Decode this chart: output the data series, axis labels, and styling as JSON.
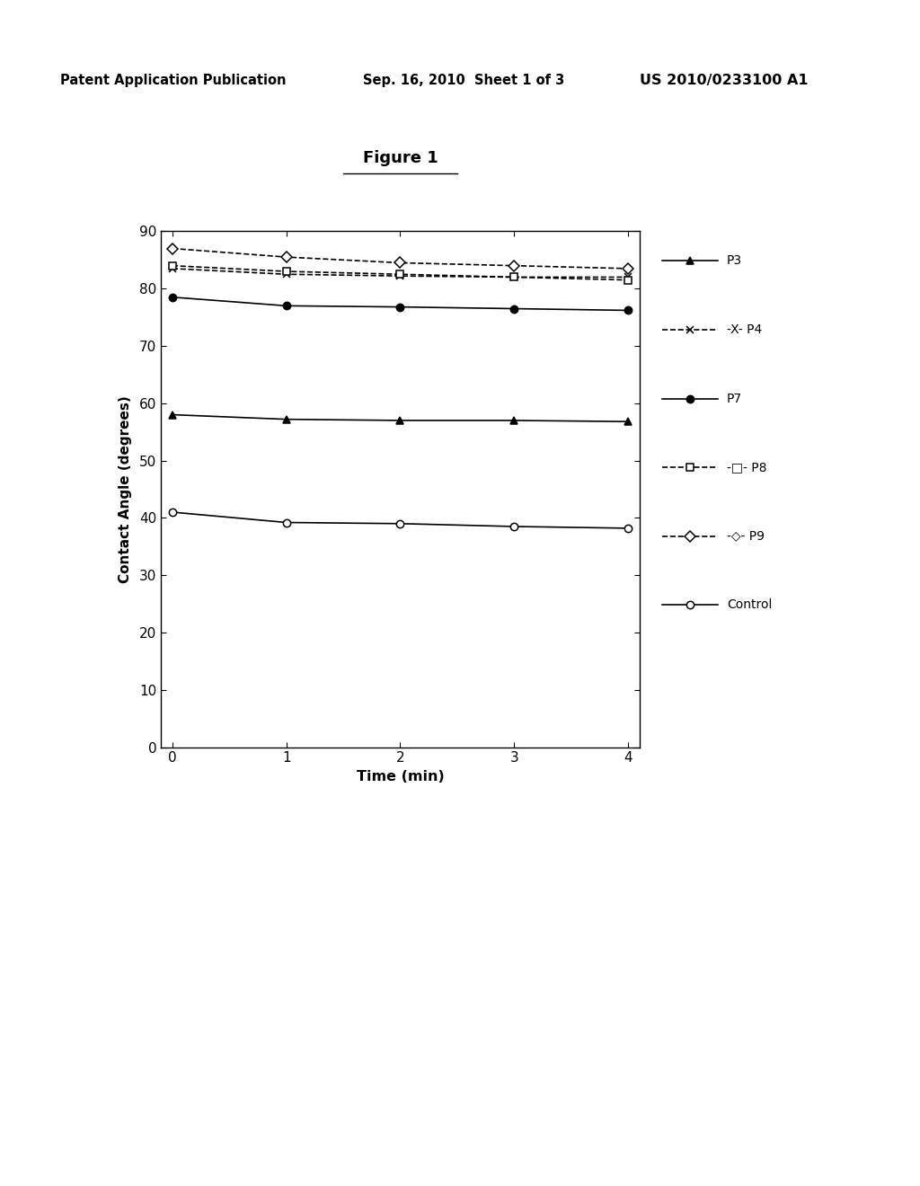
{
  "title": "Figure 1",
  "xlabel": "Time (min)",
  "ylabel": "Contact Angle (degrees)",
  "x": [
    0,
    1,
    2,
    3,
    4
  ],
  "series": [
    {
      "name": "P3",
      "y": [
        58.0,
        57.2,
        57.0,
        57.0,
        56.8
      ],
      "marker": "^",
      "linestyle": "-",
      "fill": true
    },
    {
      "name": "P4",
      "y": [
        83.5,
        82.5,
        82.2,
        82.0,
        82.0
      ],
      "marker": "x",
      "linestyle": "--",
      "fill": true
    },
    {
      "name": "P7",
      "y": [
        78.5,
        77.0,
        76.8,
        76.5,
        76.2
      ],
      "marker": "o",
      "linestyle": "-",
      "fill": true
    },
    {
      "name": "P8",
      "y": [
        84.0,
        83.0,
        82.5,
        82.0,
        81.5
      ],
      "marker": "s",
      "linestyle": "--",
      "fill": false
    },
    {
      "name": "P9",
      "y": [
        87.0,
        85.5,
        84.5,
        84.0,
        83.5
      ],
      "marker": "D",
      "linestyle": "--",
      "fill": false
    },
    {
      "name": "Control",
      "y": [
        41.0,
        39.2,
        39.0,
        38.5,
        38.2
      ],
      "marker": "o",
      "linestyle": "-",
      "fill": false
    }
  ],
  "legend_items": [
    {
      "label": "P3",
      "marker": "^",
      "ls": "-",
      "fill": true
    },
    {
      "label": "-X- P4",
      "marker": "x",
      "ls": "--",
      "fill": true
    },
    {
      "label": "P7",
      "marker": "o",
      "ls": "-",
      "fill": true
    },
    {
      "label": "-□- P8",
      "marker": "s",
      "ls": "--",
      "fill": false
    },
    {
      "label": "-◇- P9",
      "marker": "D",
      "ls": "--",
      "fill": false
    },
    {
      "label": "Control",
      "marker": "o",
      "ls": "-",
      "fill": false
    }
  ],
  "ylim": [
    0,
    90
  ],
  "xlim": [
    -0.1,
    4.1
  ],
  "yticks": [
    0,
    10,
    20,
    30,
    40,
    50,
    60,
    70,
    80,
    90
  ],
  "xticks": [
    0,
    1,
    2,
    3,
    4
  ],
  "header_left": "Patent Application Publication",
  "header_center": "Sep. 16, 2010  Sheet 1 of 3",
  "header_right": "US 2010/0233100 A1",
  "background_color": "#ffffff",
  "color": "#000000",
  "linewidth": 1.2,
  "markersize": 6
}
